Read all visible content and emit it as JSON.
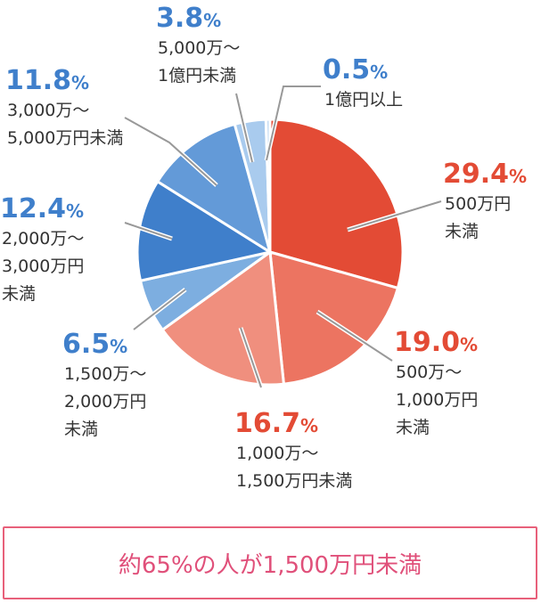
{
  "chart_data": {
    "type": "pie",
    "unit": "%",
    "slices": [
      {
        "value": 29.4,
        "pct_text": "29.4",
        "label_lines": [
          "500万円",
          "未満"
        ],
        "color": "#e34b35",
        "pct_color": "#e34b35"
      },
      {
        "value": 19.0,
        "pct_text": "19.0",
        "label_lines": [
          "500万～",
          "1,000万円",
          "未満"
        ],
        "color": "#ec7461",
        "pct_color": "#e34b35"
      },
      {
        "value": 16.7,
        "pct_text": "16.7",
        "label_lines": [
          "1,000万～",
          "1,500万円未満"
        ],
        "color": "#f08f7e",
        "pct_color": "#e34b35"
      },
      {
        "value": 6.5,
        "pct_text": "6.5",
        "label_lines": [
          "1,500万～",
          "2,000万円",
          "未満"
        ],
        "color": "#7daee0",
        "pct_color": "#3f7fcb"
      },
      {
        "value": 12.4,
        "pct_text": "12.4",
        "label_lines": [
          "2,000万～",
          "3,000万円",
          "未満"
        ],
        "color": "#3f7fcb",
        "pct_color": "#3f7fcb"
      },
      {
        "value": 11.8,
        "pct_text": "11.8",
        "label_lines": [
          "3,000万～",
          "5,000万円未満"
        ],
        "color": "#639ad8",
        "pct_color": "#3f7fcb"
      },
      {
        "value": 3.8,
        "pct_text": "3.8",
        "label_lines": [
          "5,000万～",
          "1億円未満"
        ],
        "color": "#a9cbee",
        "pct_color": "#3f7fcb"
      },
      {
        "value": 0.5,
        "pct_text": "0.5",
        "label_lines": [
          "1億円以上"
        ],
        "color": "#c6dcf3",
        "pct_color": "#3f7fcb"
      }
    ]
  },
  "summary": "約65%の人が1,500万円未満"
}
